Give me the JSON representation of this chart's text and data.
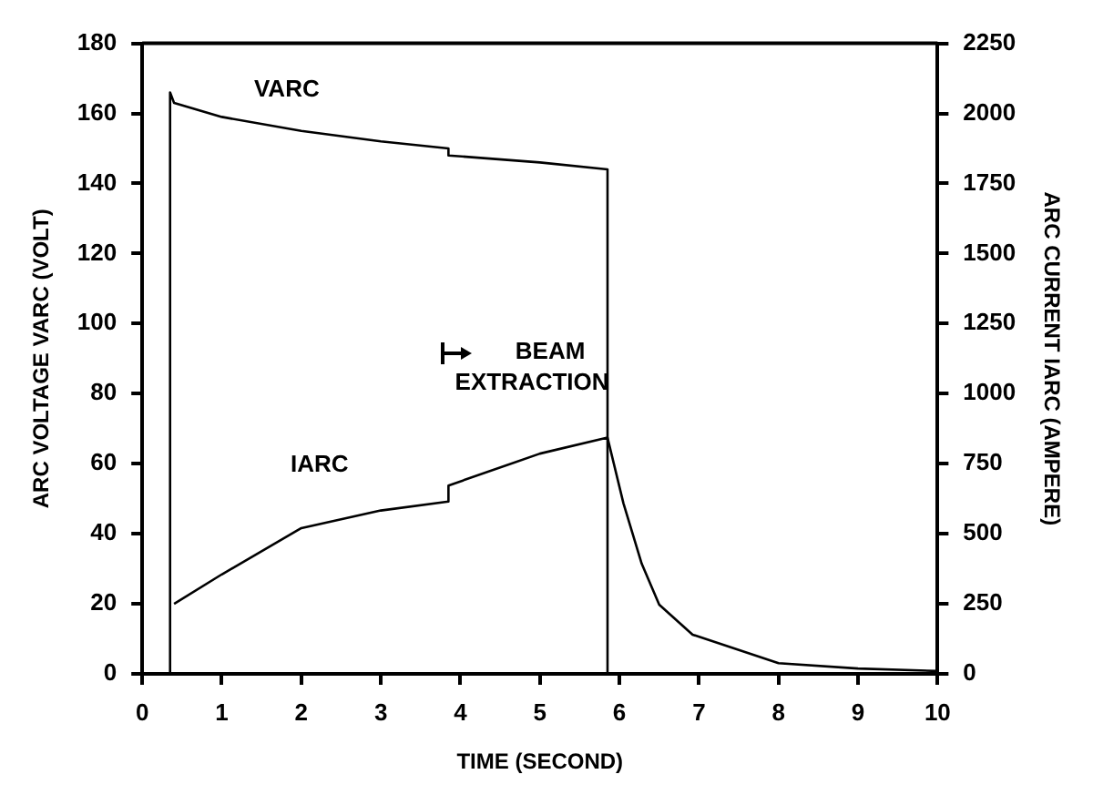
{
  "chart_data": {
    "type": "line",
    "xlabel": "TIME (SECOND)",
    "ylabel": "ARC VOLTAGE VARC (VOLT)",
    "y2label": "ARC CURRENT IARC (AMPERE)",
    "xlim": [
      0,
      10
    ],
    "xticks": [
      0,
      1,
      2,
      3,
      4,
      5,
      6,
      7,
      8,
      9,
      10
    ],
    "ylim": [
      0,
      180
    ],
    "yticks": [
      0,
      20,
      40,
      60,
      80,
      100,
      120,
      140,
      160,
      180
    ],
    "y2lim": [
      0,
      2250
    ],
    "y2ticks": [
      0,
      250,
      500,
      750,
      1000,
      1250,
      1500,
      1750,
      2000,
      2250
    ],
    "grid": false,
    "legend": false,
    "marker": "none",
    "line_style": "solid",
    "series": [
      {
        "name": "VARC",
        "color": "#000000",
        "x": [
          0.35,
          0.35,
          0.4,
          1,
          2,
          3,
          3.85,
          3.85,
          5,
          5.85,
          5.85
        ],
        "values": [
          0,
          166,
          163,
          159,
          155,
          152,
          150,
          148,
          146,
          144,
          0
        ]
      },
      {
        "name": "IARC",
        "color": "#000000",
        "axis": "y2",
        "x": [
          0.4,
          1,
          2,
          3,
          3.85,
          3.85,
          5,
          5.85,
          6.05,
          6.28,
          6.5,
          6.92,
          8,
          9,
          10
        ],
        "values": [
          250,
          355,
          520,
          583,
          615,
          672,
          786,
          843,
          609,
          393,
          247,
          140,
          38,
          19,
          10
        ]
      }
    ],
    "annotations": [
      "BEAM EXTRACTION"
    ]
  }
}
